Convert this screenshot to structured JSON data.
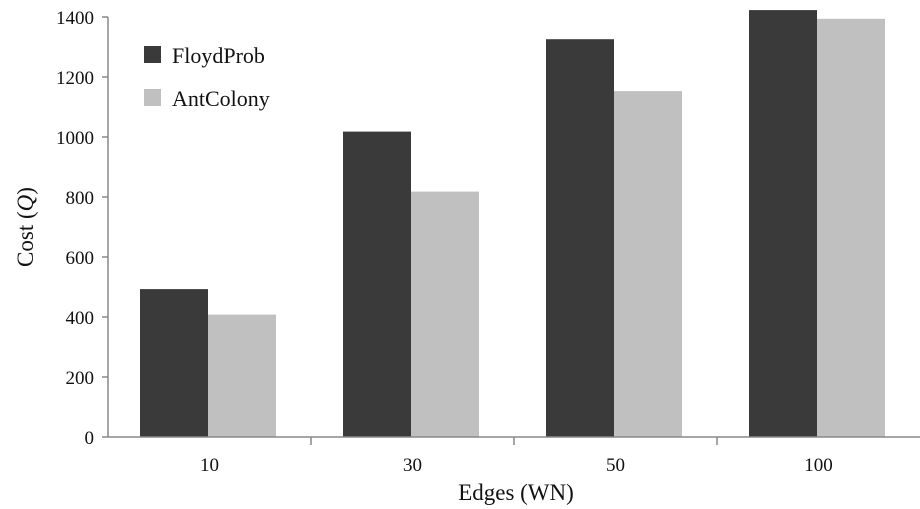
{
  "chart_data": {
    "type": "bar",
    "categories": [
      "10",
      "30",
      "50",
      "100"
    ],
    "series": [
      {
        "name": "FloydProb",
        "values": [
          493,
          1018,
          1326,
          1423
        ],
        "color": "#3a3a3a"
      },
      {
        "name": "AntColony",
        "values": [
          408,
          818,
          1153,
          1394
        ],
        "color": "#c0c0c0"
      }
    ],
    "title": "",
    "xlabel": "Edges (WN)",
    "ylabel_prefix": "Cost (",
    "ylabel_symbol": "Q",
    "ylabel_suffix": ")",
    "ylim": [
      0,
      1400
    ],
    "yticks": [
      0,
      200,
      400,
      600,
      800,
      1000,
      1200,
      1400
    ],
    "grid": false,
    "legend_position": "top-left"
  }
}
